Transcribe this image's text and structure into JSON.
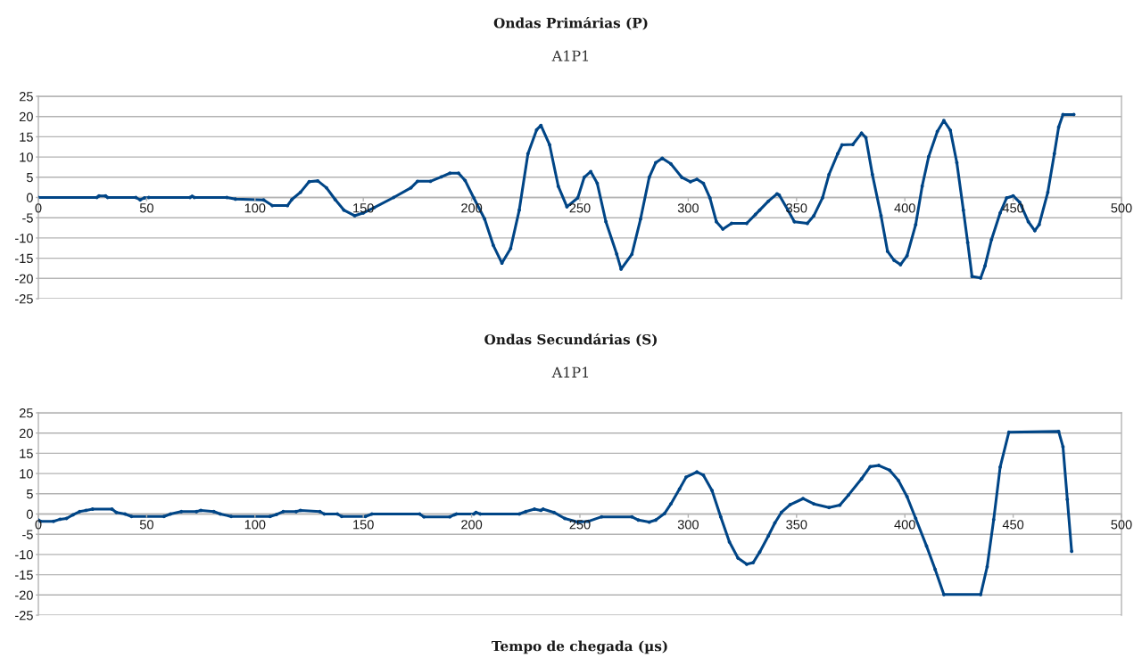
{
  "chart_data": [
    {
      "type": "line",
      "title": "Ondas Primárias (P)",
      "subtitle": "A1P1",
      "xlim": [
        0,
        500
      ],
      "xticks": [
        0,
        50,
        100,
        150,
        200,
        250,
        300,
        350,
        400,
        450,
        500
      ],
      "ylim": [
        -25,
        25
      ],
      "yticks": [
        -25,
        -20,
        -15,
        -10,
        -5,
        0,
        5,
        10,
        15,
        20,
        25
      ],
      "grid": "y",
      "marker": "circle",
      "line_style": "solid",
      "series": [
        {
          "color": "#004586",
          "x": [
            0,
            27,
            28,
            31,
            32,
            45,
            47,
            49,
            51,
            70,
            71,
            72,
            87,
            91,
            104,
            108,
            115,
            117,
            121,
            125,
            129,
            133,
            137,
            141,
            146,
            150,
            155,
            164,
            172,
            175,
            181,
            186,
            190,
            194,
            197,
            201,
            206,
            210,
            214,
            218,
            222,
            226,
            230,
            232,
            236,
            240,
            244,
            249,
            252,
            255,
            258,
            262,
            267,
            269,
            274,
            278,
            282,
            285,
            288,
            292,
            297,
            301,
            304,
            307,
            310,
            313,
            316,
            320,
            327,
            331,
            333,
            337,
            341,
            342,
            346,
            349,
            355,
            358,
            362,
            365,
            369,
            371,
            376,
            380,
            382,
            385,
            389,
            392,
            395,
            398,
            401,
            405,
            408,
            411,
            415,
            418,
            421,
            424,
            427,
            429,
            431,
            435,
            437,
            440,
            444,
            447,
            450,
            453,
            457,
            460,
            462,
            466,
            469,
            471,
            473,
            478
          ],
          "values": [
            0,
            0,
            0.4,
            0.4,
            0,
            0,
            -0.6,
            -0.1,
            0,
            0,
            0.3,
            0,
            0,
            -0.4,
            -0.6,
            -2,
            -2,
            -0.5,
            1.3,
            3.9,
            4.1,
            2.4,
            -0.5,
            -3.1,
            -4.5,
            -3.8,
            -2.5,
            0,
            2.4,
            4,
            4,
            5.1,
            6,
            6,
            4.2,
            -0.1,
            -5.3,
            -11.8,
            -16.2,
            -12.6,
            -3.1,
            10.8,
            16.7,
            17.8,
            13,
            2.8,
            -2.3,
            -0.1,
            5,
            6.4,
            3.5,
            -6,
            -14,
            -17.7,
            -14,
            -5.3,
            5,
            8.6,
            9.7,
            8.3,
            5,
            3.9,
            4.5,
            3.5,
            -0.1,
            -6,
            -7.8,
            -6.4,
            -6.4,
            -4.2,
            -3.1,
            -0.9,
            0.9,
            0.6,
            -3.1,
            -6,
            -6.4,
            -4.5,
            -0.1,
            5.7,
            10.8,
            13,
            13.1,
            15.9,
            14.8,
            5.7,
            -4.5,
            -13.3,
            -15.5,
            -16.6,
            -14.4,
            -6.7,
            2.8,
            10.1,
            16.3,
            19,
            16.6,
            8.6,
            -3.1,
            -11.1,
            -19.5,
            -19.9,
            -16.9,
            -10.4,
            -3.8,
            -0.1,
            0.4,
            -1.2,
            -6,
            -8.2,
            -6.7,
            1.3,
            10.8,
            17.4,
            20.5,
            20.5
          ]
        }
      ]
    },
    {
      "type": "line",
      "title": "Ondas Secundárias (S)",
      "subtitle": "A1P1",
      "xlabel": "Tempo de chegada (µs)",
      "xlim": [
        0,
        500
      ],
      "xticks": [
        0,
        50,
        100,
        150,
        200,
        250,
        300,
        350,
        400,
        450,
        500
      ],
      "ylim": [
        -25,
        25
      ],
      "yticks": [
        -25,
        -20,
        -15,
        -10,
        -5,
        0,
        5,
        10,
        15,
        20,
        25
      ],
      "grid": "y",
      "marker": "circle",
      "line_style": "solid",
      "series": [
        {
          "color": "#004586",
          "x": [
            0,
            1,
            7,
            10,
            13,
            16,
            19,
            22,
            25,
            34,
            36,
            40,
            43,
            58,
            61,
            66,
            73,
            75,
            81,
            84,
            89,
            107,
            110,
            113,
            119,
            121,
            130,
            132,
            138,
            140,
            151,
            154,
            176,
            178,
            190,
            192,
            193,
            201,
            202,
            204,
            222,
            225,
            229,
            232,
            233,
            238,
            243,
            249,
            254,
            260,
            274,
            277,
            282,
            285,
            289,
            292,
            296,
            299,
            304,
            307,
            311,
            315,
            319,
            323,
            327,
            330,
            333,
            337,
            340,
            343,
            347,
            353,
            358,
            365,
            370,
            374,
            380,
            384,
            388,
            393,
            397,
            401,
            405,
            410,
            414,
            418,
            435,
            438,
            441,
            444,
            448,
            471,
            473,
            475,
            477
          ],
          "values": [
            -1.5,
            -1.8,
            -1.8,
            -1.3,
            -1.1,
            -0.2,
            0.6,
            0.9,
            1.2,
            1.2,
            0.4,
            0,
            -0.6,
            -0.6,
            0,
            0.6,
            0.6,
            0.9,
            0.6,
            0,
            -0.6,
            -0.6,
            -0.1,
            0.6,
            0.6,
            0.9,
            0.6,
            0,
            0,
            -0.6,
            -0.6,
            0,
            0,
            -0.7,
            -0.7,
            -0.2,
            0,
            0,
            0.4,
            0,
            0,
            0.6,
            1.2,
            0.9,
            1.2,
            0.4,
            -1.1,
            -2,
            -1.8,
            -0.7,
            -0.7,
            -1.5,
            -2,
            -1.5,
            0.1,
            2.5,
            6.2,
            9.1,
            10.4,
            9.6,
            5.8,
            -0.7,
            -6.9,
            -10.9,
            -12.4,
            -12,
            -9.4,
            -5.4,
            -2.2,
            0.4,
            2.3,
            3.8,
            2.5,
            1.6,
            2.2,
            4.7,
            8.7,
            11.7,
            12,
            10.8,
            8.3,
            4.3,
            -1.1,
            -7.9,
            -13.7,
            -19.9,
            -19.9,
            -13,
            -1.4,
            11.6,
            20.2,
            20.4,
            16.6,
            3.6,
            -9.2
          ]
        }
      ]
    }
  ]
}
